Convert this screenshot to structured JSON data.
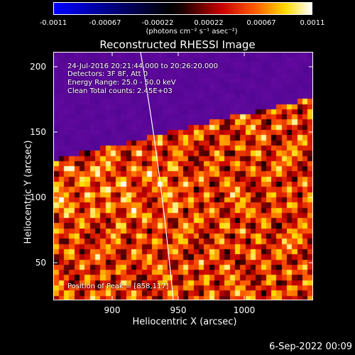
{
  "colorbar": {
    "ticks": [
      "-0.0011",
      "-0.00067",
      "-0.00022",
      "0.00022",
      "0.00067",
      "0.0011"
    ],
    "units": "(photons cm⁻² s⁻¹ asec⁻²)",
    "vmin": -0.0011,
    "vmax": 0.0011
  },
  "title": "Reconstructed RHESSI Image",
  "info": {
    "line1": "24-Jul-2016 20:21:44.000 to 20:26:20.000",
    "line2": "Detectors: 3F 8F, Att 0",
    "line3": "Energy Range: 25.0 - 50.0 keV",
    "line4": "Clean     Total counts: 2.45E+03",
    "peak": "Position of Peak = [858,117]"
  },
  "axes": {
    "xlabel": "Heliocentric X (arcsec)",
    "ylabel": "Heliocentric Y (arcsec)",
    "xticks": [
      "900",
      "950",
      "1000"
    ],
    "yticks": [
      "200",
      "150",
      "100",
      "50"
    ],
    "xlim": [
      858,
      1041
    ],
    "ylim": [
      21,
      213
    ],
    "colormap": "blue-black-red-yellow-white"
  },
  "footer": "6-Sep-2022 00:09"
}
